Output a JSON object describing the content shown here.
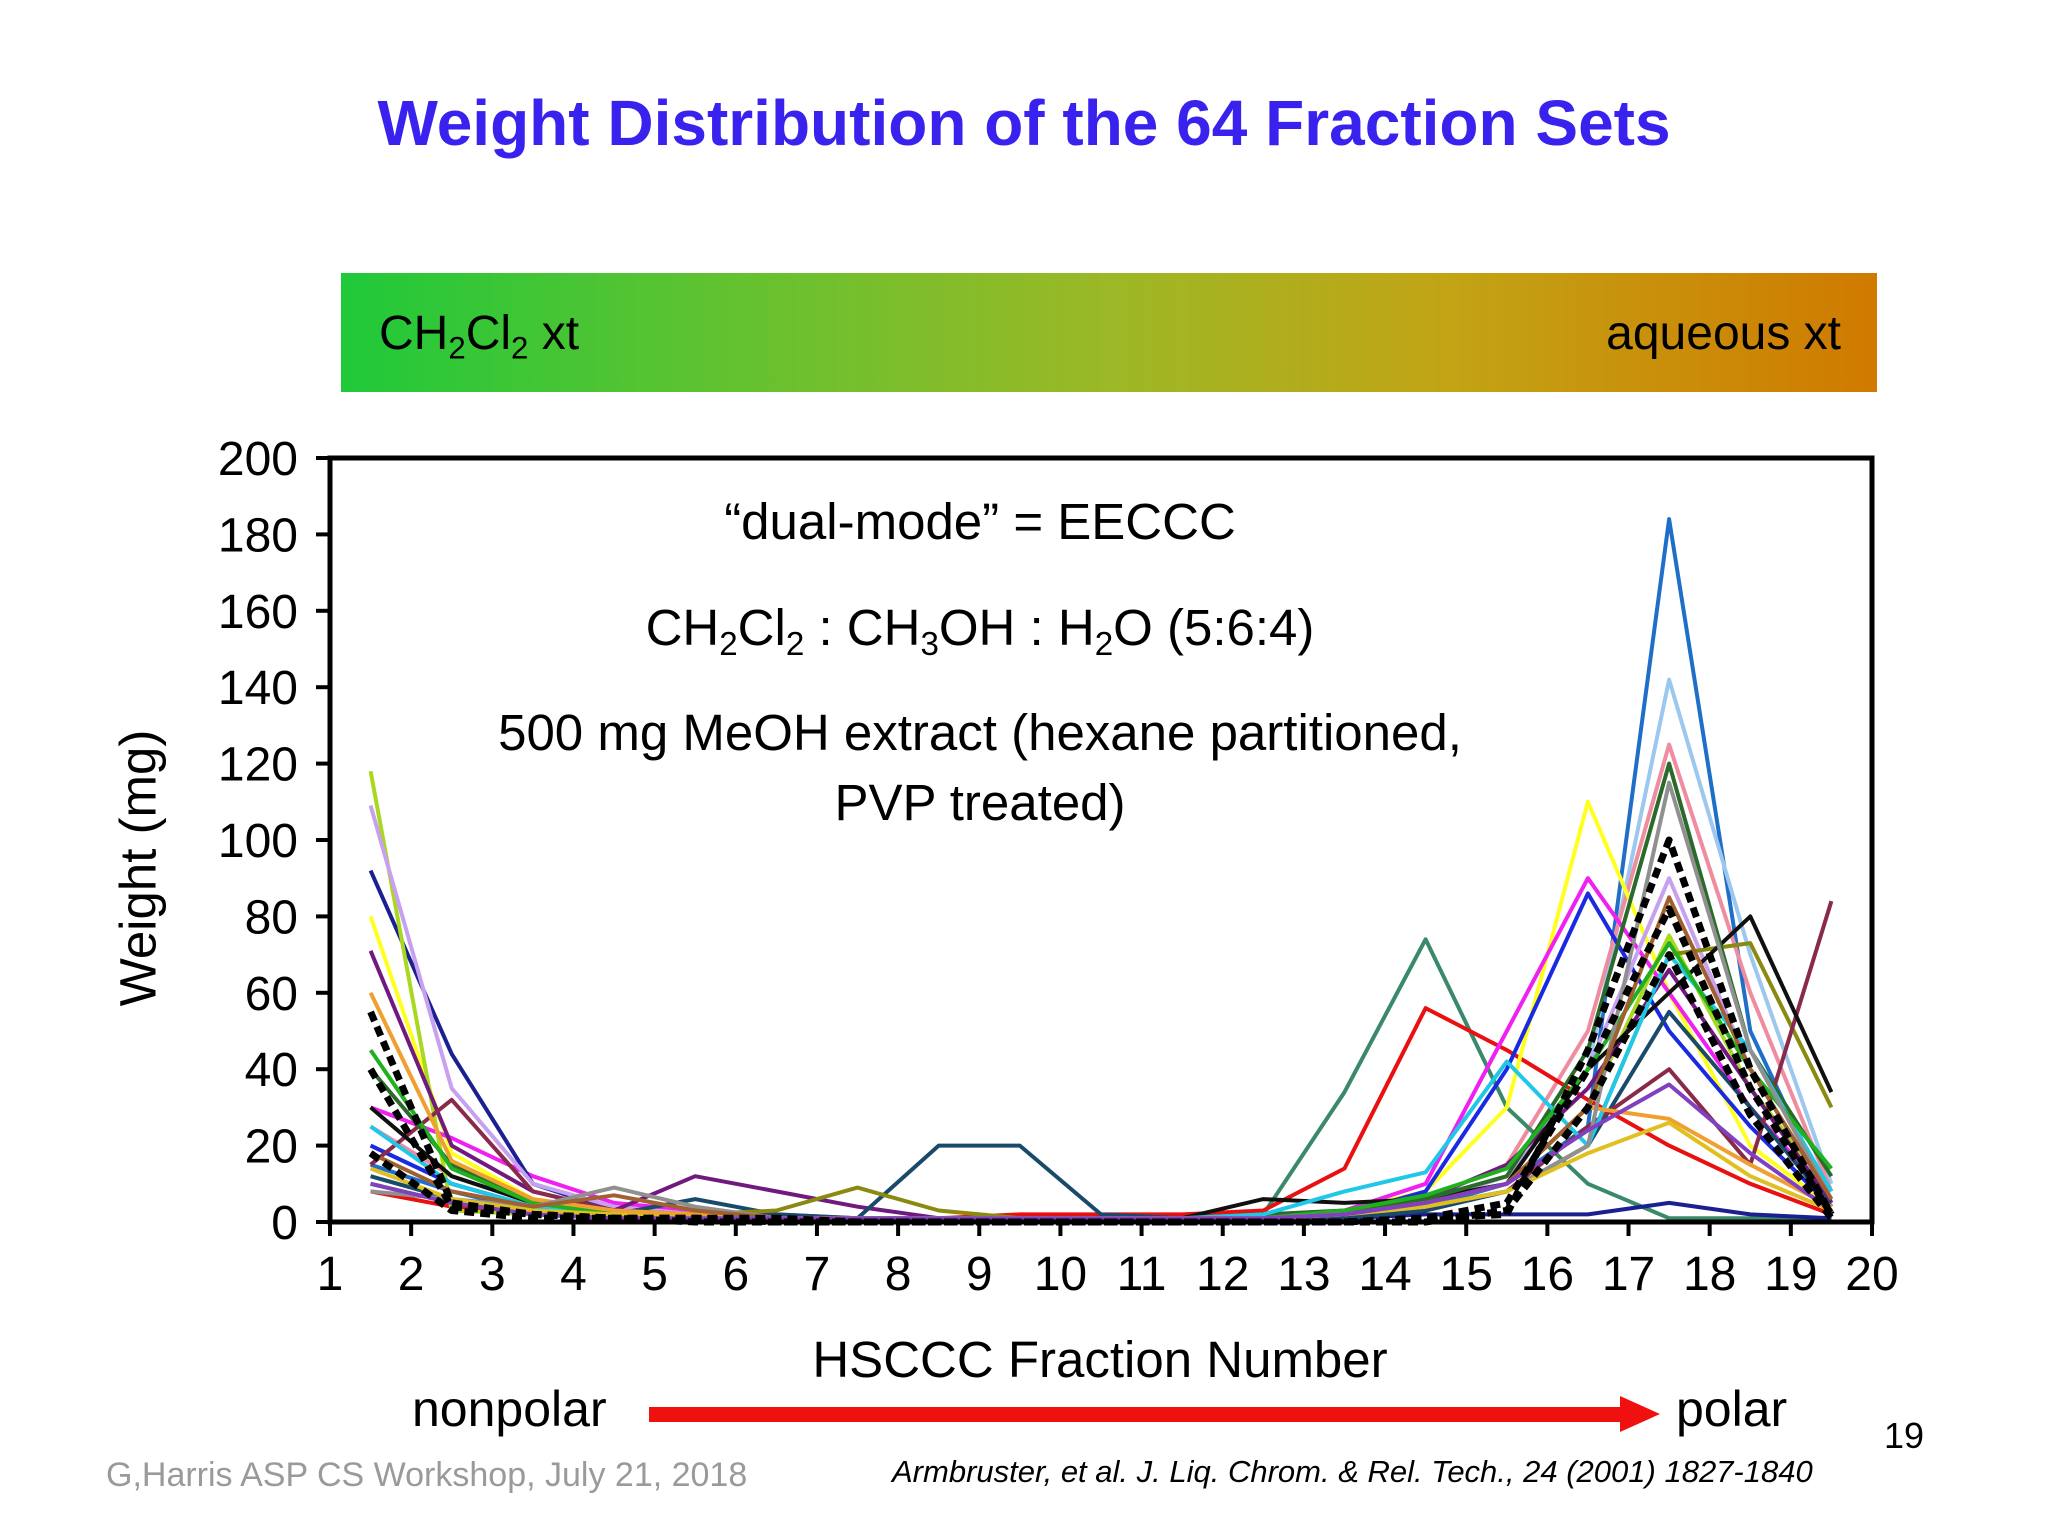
{
  "title": "Weight Distribution of the 64 Fraction Sets",
  "gradient_bar": {
    "left_label_parts": [
      "CH",
      "2",
      "Cl",
      "2",
      " xt"
    ],
    "right_label": "aqueous xt"
  },
  "annotations": {
    "line1": "“dual-mode” = EECCC",
    "line2_parts": [
      "CH",
      "2",
      "Cl",
      "2",
      " : CH",
      "3",
      "OH : H",
      "2",
      "O (5:6:4)"
    ],
    "line3": "500 mg MeOH extract (hexane partitioned,",
    "line4": "PVP treated)"
  },
  "polarity": {
    "left": "nonpolar",
    "right": "polar"
  },
  "page_number": "19",
  "credit": "G,Harris ASP CS Workshop, July 21, 2018",
  "citation": "Armbruster, et al. J. Liq. Chrom. & Rel. Tech., 24 (2001) 1827-1840",
  "colors": {
    "title": "#3a22ee",
    "arrow": "#f01010"
  },
  "chart_data": {
    "type": "line",
    "title": "",
    "xlabel": "HSCCC Fraction Number",
    "ylabel": "Weight (mg)",
    "xlim": [
      1,
      20
    ],
    "ylim": [
      0,
      200
    ],
    "xticks": [
      1,
      2,
      3,
      4,
      5,
      6,
      7,
      8,
      9,
      10,
      11,
      12,
      13,
      14,
      15,
      16,
      17,
      18,
      19,
      20
    ],
    "yticks": [
      0,
      20,
      40,
      60,
      80,
      100,
      120,
      140,
      160,
      180,
      200
    ],
    "x": [
      1.5,
      2.5,
      3.5,
      4.5,
      5.5,
      6.5,
      7.5,
      8.5,
      9.5,
      10.5,
      11.5,
      12.5,
      13.5,
      14.5,
      15.5,
      16.5,
      17.5,
      18.5,
      19.5
    ],
    "series": [
      {
        "name": "series-blue-peak",
        "color": "#1f6fc8",
        "values": [
          15,
          8,
          3,
          2,
          1,
          1,
          1,
          1,
          1,
          1,
          1,
          1,
          2,
          4,
          10,
          25,
          184,
          50,
          5
        ],
        "dashed": false
      },
      {
        "name": "series-lightblue-peak",
        "color": "#9cc8f0",
        "values": [
          20,
          10,
          4,
          2,
          1,
          1,
          1,
          1,
          1,
          1,
          1,
          1,
          3,
          5,
          12,
          40,
          142,
          70,
          10
        ],
        "dashed": false
      },
      {
        "name": "series-pink-peak",
        "color": "#f08ca0",
        "values": [
          25,
          12,
          5,
          3,
          2,
          1,
          1,
          1,
          1,
          1,
          1,
          1,
          2,
          6,
          15,
          50,
          125,
          60,
          8
        ],
        "dashed": false
      },
      {
        "name": "series-green-teal",
        "color": "#3a8a6a",
        "values": [
          10,
          5,
          2,
          1,
          1,
          1,
          1,
          1,
          1,
          1,
          1,
          2,
          34,
          74,
          30,
          10,
          1,
          1,
          1
        ],
        "dashed": false
      },
      {
        "name": "series-red",
        "color": "#e81010",
        "values": [
          8,
          4,
          2,
          1,
          1,
          1,
          1,
          1,
          2,
          2,
          2,
          3,
          14,
          56,
          45,
          32,
          20,
          10,
          2
        ],
        "dashed": false
      },
      {
        "name": "series-yellow",
        "color": "#ffff20",
        "values": [
          80,
          18,
          6,
          3,
          2,
          1,
          1,
          1,
          1,
          1,
          1,
          1,
          3,
          8,
          30,
          110,
          60,
          20,
          4
        ],
        "dashed": false
      },
      {
        "name": "series-magenta",
        "color": "#f020f0",
        "values": [
          30,
          22,
          12,
          5,
          3,
          2,
          1,
          1,
          1,
          1,
          1,
          1,
          3,
          10,
          50,
          90,
          60,
          30,
          6
        ],
        "dashed": false
      },
      {
        "name": "series-blue",
        "color": "#1a2ae0",
        "values": [
          20,
          10,
          4,
          2,
          1,
          1,
          1,
          1,
          1,
          1,
          1,
          1,
          2,
          8,
          40,
          86,
          50,
          25,
          4
        ],
        "dashed": false
      },
      {
        "name": "series-navy",
        "color": "#1a2090",
        "values": [
          92,
          44,
          10,
          3,
          2,
          1,
          1,
          1,
          1,
          1,
          1,
          1,
          1,
          2,
          2,
          2,
          5,
          2,
          1
        ],
        "dashed": false
      },
      {
        "name": "series-yellowgreen",
        "color": "#a8d820",
        "values": [
          118,
          3,
          2,
          1,
          1,
          1,
          1,
          1,
          1,
          1,
          1,
          1,
          2,
          5,
          10,
          30,
          75,
          35,
          8
        ],
        "dashed": false
      },
      {
        "name": "series-lavender",
        "color": "#c8a0f0",
        "values": [
          109,
          35,
          10,
          4,
          2,
          1,
          1,
          1,
          1,
          1,
          1,
          1,
          2,
          5,
          12,
          40,
          90,
          40,
          6
        ],
        "dashed": false
      },
      {
        "name": "series-purple",
        "color": "#701a80",
        "values": [
          71,
          20,
          8,
          3,
          12,
          8,
          4,
          1,
          1,
          1,
          1,
          1,
          2,
          6,
          15,
          35,
          66,
          35,
          5
        ],
        "dashed": false
      },
      {
        "name": "series-darkteal",
        "color": "#1a4a6a",
        "values": [
          12,
          6,
          3,
          2,
          6,
          2,
          1,
          20,
          20,
          2,
          1,
          1,
          1,
          3,
          8,
          20,
          55,
          30,
          4
        ],
        "dashed": false
      },
      {
        "name": "series-olive",
        "color": "#8a8a10",
        "values": [
          10,
          5,
          3,
          2,
          2,
          3,
          9,
          3,
          1,
          1,
          1,
          1,
          2,
          4,
          8,
          20,
          70,
          73,
          30
        ],
        "dashed": false
      },
      {
        "name": "series-maroon",
        "color": "#8a2a4a",
        "values": [
          15,
          32,
          8,
          3,
          2,
          1,
          1,
          1,
          1,
          1,
          1,
          1,
          2,
          4,
          8,
          25,
          40,
          15,
          84
        ],
        "dashed": false
      },
      {
        "name": "series-black",
        "color": "#101010",
        "values": [
          30,
          12,
          5,
          2,
          1,
          1,
          1,
          1,
          1,
          1,
          1,
          6,
          5,
          6,
          10,
          40,
          60,
          80,
          34
        ],
        "dashed": false
      },
      {
        "name": "series-darkgreen",
        "color": "#2a6a2a",
        "values": [
          40,
          15,
          5,
          2,
          1,
          1,
          1,
          1,
          1,
          1,
          1,
          2,
          3,
          6,
          12,
          45,
          120,
          45,
          12
        ],
        "dashed": false
      },
      {
        "name": "series-cyan",
        "color": "#20c8e8",
        "values": [
          25,
          10,
          4,
          2,
          1,
          1,
          1,
          1,
          1,
          1,
          1,
          2,
          8,
          13,
          42,
          20,
          70,
          45,
          8
        ],
        "dashed": false
      },
      {
        "name": "series-green",
        "color": "#20b020",
        "values": [
          45,
          14,
          5,
          2,
          1,
          1,
          1,
          1,
          1,
          1,
          1,
          1,
          3,
          7,
          14,
          40,
          73,
          40,
          14
        ],
        "dashed": false
      },
      {
        "name": "series-orange",
        "color": "#f0a030",
        "values": [
          60,
          16,
          6,
          3,
          2,
          1,
          1,
          1,
          1,
          1,
          1,
          1,
          2,
          5,
          10,
          30,
          27,
          15,
          4
        ],
        "dashed": false
      },
      {
        "name": "series-gray",
        "color": "#909090",
        "values": [
          8,
          6,
          4,
          9,
          4,
          1,
          1,
          1,
          1,
          1,
          1,
          1,
          2,
          4,
          8,
          20,
          115,
          45,
          6
        ],
        "dashed": false
      },
      {
        "name": "series-brown",
        "color": "#a06030",
        "values": [
          18,
          8,
          4,
          7,
          3,
          1,
          1,
          1,
          1,
          1,
          1,
          1,
          2,
          5,
          10,
          30,
          85,
          40,
          6
        ],
        "dashed": false
      },
      {
        "name": "series-gold",
        "color": "#e0c020",
        "values": [
          14,
          6,
          3,
          2,
          1,
          1,
          1,
          1,
          1,
          1,
          1,
          1,
          2,
          4,
          8,
          18,
          26,
          12,
          3
        ],
        "dashed": false
      },
      {
        "name": "series-violet",
        "color": "#8040c0",
        "values": [
          10,
          5,
          2,
          1,
          1,
          1,
          1,
          1,
          1,
          1,
          1,
          1,
          2,
          5,
          10,
          24,
          36,
          18,
          3
        ],
        "dashed": false
      },
      {
        "name": "series-mean-a",
        "color": "#000000",
        "values": [
          55,
          5,
          2,
          1,
          1,
          1,
          0,
          0,
          0,
          0,
          0,
          0,
          0,
          1,
          2,
          45,
          100,
          40,
          2
        ],
        "dashed": true
      },
      {
        "name": "series-mean-b",
        "color": "#000000",
        "values": [
          40,
          4,
          2,
          1,
          1,
          0,
          0,
          0,
          0,
          0,
          0,
          0,
          0,
          1,
          5,
          40,
          82,
          35,
          2
        ],
        "dashed": true
      },
      {
        "name": "series-mean-c",
        "color": "#000000",
        "values": [
          18,
          3,
          1,
          1,
          0,
          0,
          0,
          0,
          0,
          0,
          0,
          0,
          0,
          0,
          3,
          30,
          70,
          28,
          1
        ],
        "dashed": true
      }
    ]
  }
}
